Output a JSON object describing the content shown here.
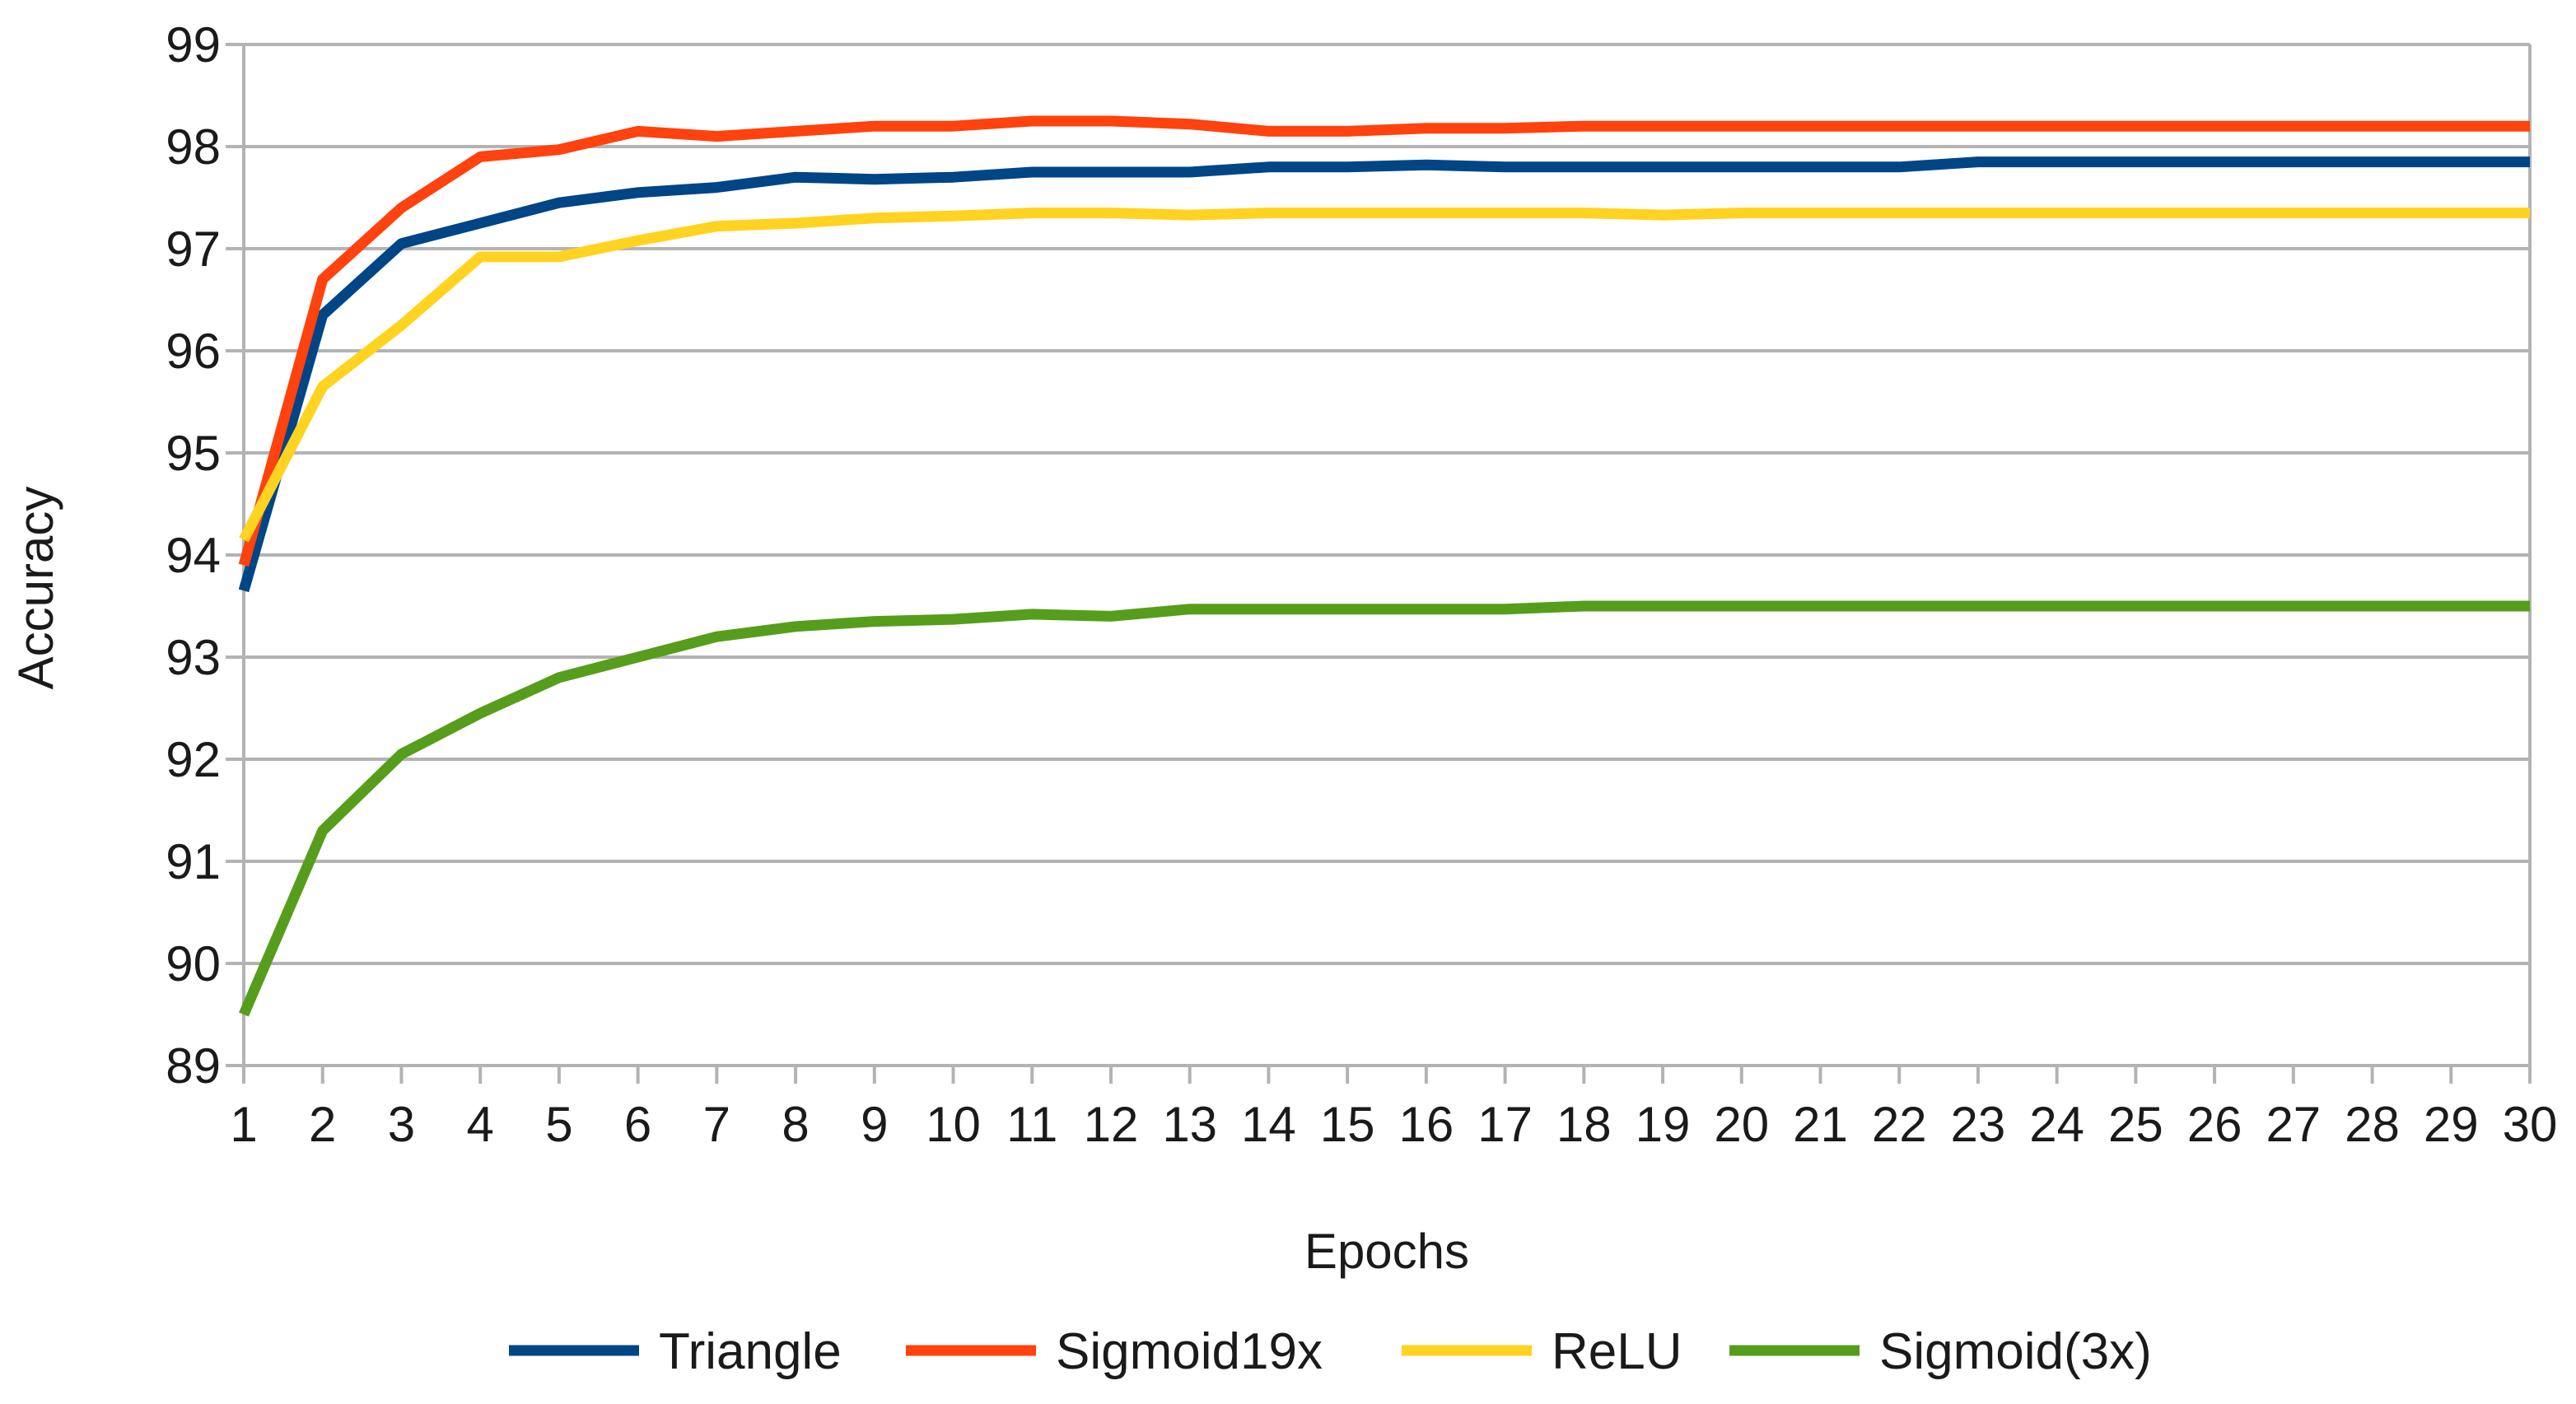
{
  "chart_data": {
    "type": "line",
    "title": "",
    "xlabel": "Epochs",
    "ylabel": "Accuracy",
    "x": [
      1,
      2,
      3,
      4,
      5,
      6,
      7,
      8,
      9,
      10,
      11,
      12,
      13,
      14,
      15,
      16,
      17,
      18,
      19,
      20,
      21,
      22,
      23,
      24,
      25,
      26,
      27,
      28,
      29,
      30
    ],
    "ylim": [
      89,
      99
    ],
    "yticks": [
      89,
      90,
      91,
      92,
      93,
      94,
      95,
      96,
      97,
      98,
      99
    ],
    "grid": true,
    "legend_position": "bottom",
    "series": [
      {
        "name": "Triangle",
        "color": "#004586",
        "values": [
          93.65,
          96.35,
          97.05,
          97.25,
          97.45,
          97.55,
          97.6,
          97.7,
          97.68,
          97.7,
          97.75,
          97.75,
          97.75,
          97.8,
          97.8,
          97.82,
          97.8,
          97.8,
          97.8,
          97.8,
          97.8,
          97.8,
          97.85,
          97.85,
          97.85,
          97.85,
          97.85,
          97.85,
          97.85,
          97.85
        ]
      },
      {
        "name": "Sigmoid19x",
        "color": "#ff420e",
        "values": [
          93.9,
          96.7,
          97.4,
          97.9,
          97.97,
          98.15,
          98.1,
          98.15,
          98.2,
          98.2,
          98.25,
          98.25,
          98.22,
          98.15,
          98.15,
          98.18,
          98.18,
          98.2,
          98.2,
          98.2,
          98.2,
          98.2,
          98.2,
          98.2,
          98.2,
          98.2,
          98.2,
          98.2,
          98.2,
          98.2
        ]
      },
      {
        "name": "ReLU",
        "color": "#ffd320",
        "values": [
          94.15,
          95.65,
          96.25,
          96.92,
          96.92,
          97.08,
          97.22,
          97.25,
          97.3,
          97.32,
          97.35,
          97.35,
          97.33,
          97.35,
          97.35,
          97.35,
          97.35,
          97.35,
          97.33,
          97.35,
          97.35,
          97.35,
          97.35,
          97.35,
          97.35,
          97.35,
          97.35,
          97.35,
          97.35,
          97.35
        ]
      },
      {
        "name": "Sigmoid(3x)",
        "color": "#579d1c",
        "values": [
          89.5,
          91.3,
          92.05,
          92.45,
          92.8,
          93.0,
          93.2,
          93.3,
          93.35,
          93.37,
          93.42,
          93.4,
          93.47,
          93.47,
          93.47,
          93.47,
          93.47,
          93.5,
          93.5,
          93.5,
          93.5,
          93.5,
          93.5,
          93.5,
          93.5,
          93.5,
          93.5,
          93.5,
          93.5,
          93.5
        ]
      }
    ]
  }
}
